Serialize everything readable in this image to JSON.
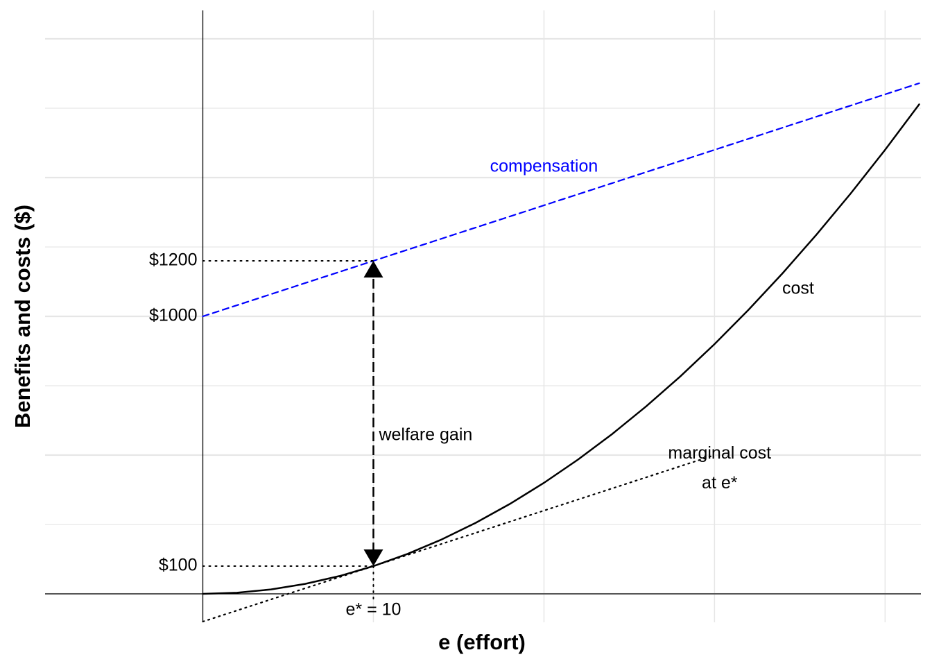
{
  "chart_data": {
    "type": "line",
    "xlabel": "e (effort)",
    "ylabel": "Benefits and costs ($)",
    "xlim": [
      -9.25,
      42.1
    ],
    "ylim": [
      -102.5,
      2102.5
    ],
    "xticks": [
      {
        "value": 10,
        "label": "e* = 10"
      }
    ],
    "yticks": [
      {
        "value": 100,
        "label": "$100"
      },
      {
        "value": 1000,
        "label": "$1000"
      },
      {
        "value": 1200,
        "label": "$1200"
      }
    ],
    "grid": true,
    "xgrid": [
      10,
      20,
      30,
      40
    ],
    "ygrid": [
      0,
      250,
      500,
      750,
      1000,
      1250,
      1500,
      1750,
      2000
    ],
    "series": [
      {
        "name": "cost",
        "color": "#000000",
        "style": "solid",
        "x": [
          0,
          2,
          4,
          6,
          8,
          10,
          12,
          14,
          16,
          18,
          20,
          22,
          24,
          26,
          28,
          30,
          32,
          34,
          36,
          38,
          40,
          42
        ],
        "values": [
          0,
          4,
          16,
          36,
          64,
          100,
          144,
          196,
          256,
          324,
          400,
          484,
          576,
          676,
          784,
          900,
          1024,
          1156,
          1296,
          1444,
          1600,
          1764
        ]
      },
      {
        "name": "compensation",
        "color": "#0000ff",
        "style": "dashed",
        "x": [
          0,
          42
        ],
        "values": [
          1000,
          1840
        ]
      },
      {
        "name": "marginal cost at e*",
        "color": "#000000",
        "style": "dotted",
        "x": [
          0,
          30
        ],
        "values": [
          -100,
          500
        ]
      }
    ],
    "welfare_gain": {
      "label": "welfare gain",
      "x": 10,
      "y_from": 100,
      "y_to": 1200
    }
  }
}
